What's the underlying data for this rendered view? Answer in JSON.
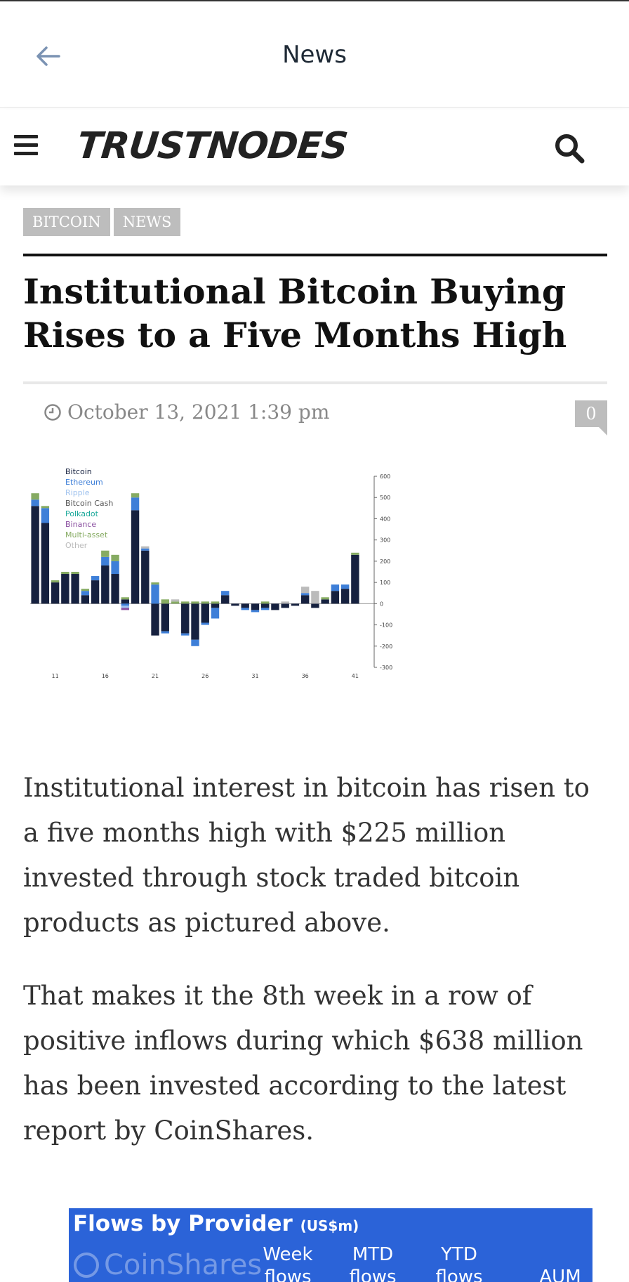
{
  "appbar": {
    "title": "News"
  },
  "site": {
    "logo": "TRUSTNODES"
  },
  "tags": [
    "BITCOIN",
    "NEWS"
  ],
  "article": {
    "title": "Institutional Bitcoin Buying Rises to a Five Months High",
    "date": "October 13, 2021 1:39 pm",
    "comment_count": "0",
    "paragraphs": [
      "Institutional interest in bitcoin has risen to a five months high with $225 million invested through stock traded bitcoin products as pictured above.",
      "That makes it the 8th week in a row of positive inflows during which $638 million has been invested according to the latest report by CoinShares."
    ]
  },
  "flows_table": {
    "title": "Flows by Provider",
    "unit": "(US$m)",
    "brand": "CoinShares",
    "columns": [
      "Week flows",
      "MTD flows",
      "YTD flows",
      "AUM"
    ]
  },
  "chart_data": {
    "type": "bar",
    "stacked": true,
    "x": [
      9,
      10,
      11,
      12,
      13,
      14,
      15,
      16,
      17,
      18,
      19,
      20,
      21,
      22,
      23,
      24,
      25,
      26,
      27,
      28,
      29,
      30,
      31,
      32,
      33,
      34,
      35,
      36,
      37,
      38,
      39,
      40,
      41
    ],
    "xticks": [
      "11",
      "16",
      "21",
      "26",
      "31",
      "36",
      "41"
    ],
    "ylim": [
      -300,
      600
    ],
    "yticks": [
      -300,
      -200,
      -100,
      0,
      100,
      200,
      300,
      400,
      500,
      600
    ],
    "legend": [
      "Bitcoin",
      "Ethereum",
      "Ripple",
      "Bitcoin Cash",
      "Polkadot",
      "Binance",
      "Multi-asset",
      "Other"
    ],
    "colors": {
      "Bitcoin": "#16213f",
      "Ethereum": "#3e7fd8",
      "Ripple": "#9fc2ee",
      "Bitcoin Cash": "#555555",
      "Polkadot": "#1aa89a",
      "Binance": "#8a4fa0",
      "Multi-asset": "#86ab62",
      "Other": "#bbbbbb"
    },
    "series": [
      {
        "name": "Bitcoin",
        "values": [
          460,
          380,
          100,
          140,
          140,
          40,
          110,
          180,
          140,
          20,
          440,
          250,
          -150,
          -130,
          0,
          -140,
          -170,
          -90,
          -20,
          40,
          -10,
          -20,
          -30,
          -20,
          -30,
          -20,
          -10,
          40,
          -20,
          20,
          60,
          70,
          230
        ]
      },
      {
        "name": "Ethereum",
        "values": [
          30,
          70,
          0,
          0,
          0,
          20,
          20,
          40,
          60,
          -10,
          60,
          10,
          90,
          -10,
          0,
          -10,
          -30,
          -10,
          -50,
          20,
          0,
          -10,
          -10,
          -10,
          0,
          0,
          0,
          10,
          0,
          0,
          30,
          20,
          0
        ]
      },
      {
        "name": "Ripple",
        "values": [
          0,
          0,
          0,
          0,
          0,
          0,
          0,
          0,
          0,
          -10,
          0,
          0,
          0,
          0,
          0,
          0,
          0,
          0,
          0,
          0,
          0,
          0,
          0,
          0,
          0,
          0,
          0,
          0,
          0,
          0,
          0,
          0,
          0
        ]
      },
      {
        "name": "Bitcoin Cash",
        "values": [
          0,
          0,
          0,
          0,
          0,
          0,
          0,
          0,
          0,
          0,
          0,
          0,
          0,
          0,
          0,
          0,
          0,
          0,
          0,
          0,
          0,
          0,
          0,
          0,
          0,
          0,
          0,
          0,
          0,
          0,
          0,
          0,
          0
        ]
      },
      {
        "name": "Polkadot",
        "values": [
          0,
          0,
          0,
          0,
          0,
          0,
          0,
          0,
          0,
          0,
          0,
          0,
          0,
          0,
          0,
          0,
          0,
          0,
          0,
          0,
          0,
          0,
          0,
          0,
          0,
          0,
          0,
          0,
          0,
          0,
          0,
          0,
          0
        ]
      },
      {
        "name": "Binance",
        "values": [
          0,
          0,
          0,
          0,
          0,
          0,
          0,
          0,
          0,
          -10,
          0,
          0,
          0,
          0,
          0,
          0,
          0,
          0,
          0,
          0,
          0,
          0,
          0,
          0,
          0,
          0,
          0,
          0,
          0,
          0,
          0,
          0,
          0
        ]
      },
      {
        "name": "Multi-asset",
        "values": [
          30,
          10,
          10,
          10,
          10,
          10,
          0,
          30,
          30,
          10,
          20,
          0,
          10,
          20,
          10,
          10,
          10,
          10,
          10,
          0,
          0,
          0,
          0,
          10,
          0,
          0,
          0,
          0,
          0,
          10,
          0,
          0,
          10
        ]
      },
      {
        "name": "Other",
        "values": [
          0,
          0,
          0,
          0,
          0,
          0,
          0,
          0,
          0,
          0,
          0,
          10,
          0,
          0,
          10,
          0,
          0,
          0,
          0,
          0,
          0,
          0,
          0,
          0,
          0,
          10,
          0,
          30,
          60,
          0,
          0,
          0,
          0
        ]
      }
    ]
  }
}
